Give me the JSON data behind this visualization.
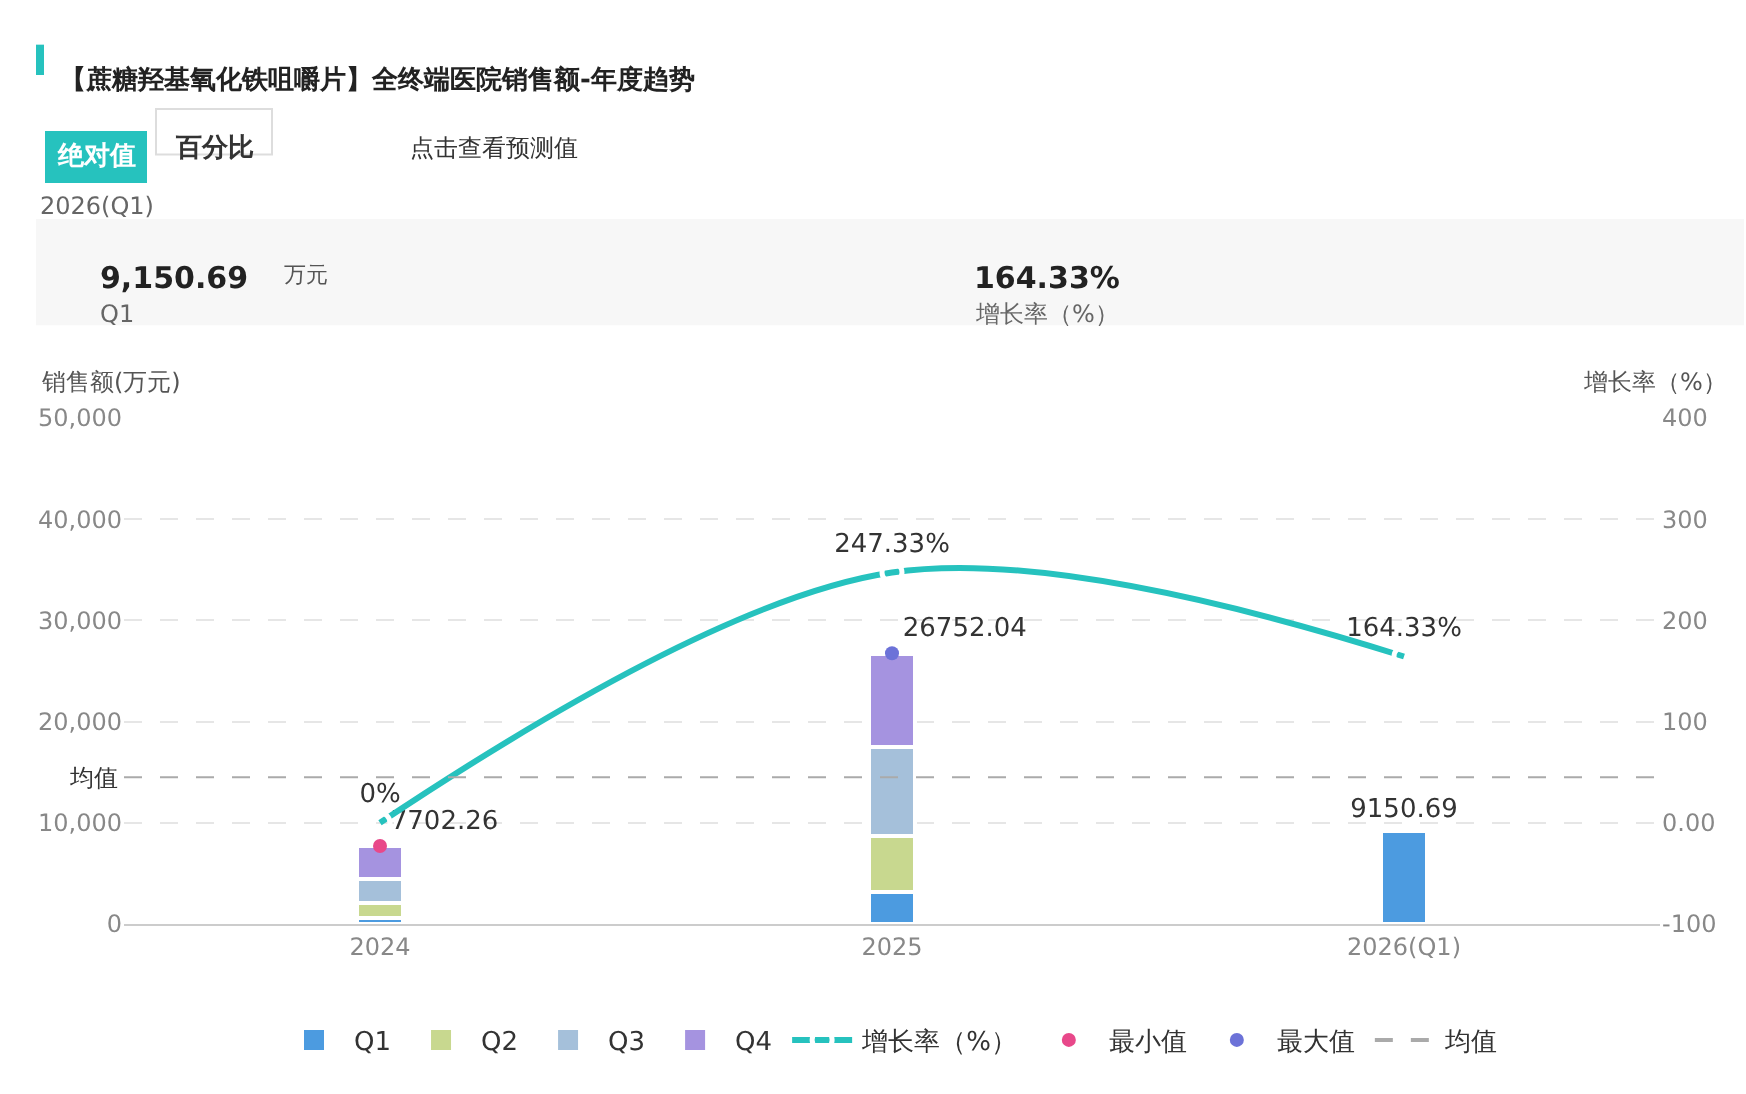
{
  "chart_data": [
    {
      "type": "other",
      "title": "【蔗糖羟基氧化铁咀嚼片】全终端医院销售额-年度趋势",
      "annotations": [
        "绝对值",
        "百分比",
        "点击查看预测值",
        "2026(Q1)",
        "9,150.69",
        "万元",
        "Q1",
        "164.33%",
        "增长率（%）"
      ]
    },
    {
      "type": "bar",
      "stacked": true,
      "categories": [
        "2024",
        "2025",
        "2026(Q1)"
      ],
      "ylabel": "销售额(万元)",
      "y2label": "增长率（%）",
      "ylim": [
        0,
        50000
      ],
      "yticks": [
        {
          "value": 0,
          "label": "0"
        },
        {
          "value": 10000,
          "label": "10,000"
        },
        {
          "value": 20000,
          "label": "20,000"
        },
        {
          "value": 30000,
          "label": "30,000"
        },
        {
          "value": 40000,
          "label": "40,000"
        },
        {
          "value": 50000,
          "label": "50,000"
        }
      ],
      "y2lim": [
        -100,
        400
      ],
      "y2ticks": [
        -100,
        {
          "value": 0,
          "label": "0.00"
        },
        100,
        200,
        300,
        400
      ],
      "series": [
        {
          "name": "Q1",
          "color": "#4c9be0",
          "values": [
            600,
            3200,
            9150.69
          ],
          "value_labels": [
            null,
            null,
            "9150.69"
          ]
        },
        {
          "name": "Q2",
          "color": "#c8d88f",
          "values": [
            1500,
            5500,
            null
          ]
        },
        {
          "name": "Q3",
          "color": "#a5c0da",
          "values": [
            2300,
            8800,
            null
          ]
        },
        {
          "name": "Q4",
          "color": "#a593e0",
          "values": [
            3300,
            9200,
            null
          ]
        },
        {
          "name": "增长率（%）",
          "type": "line",
          "axis": "y2",
          "color": "#26c2be",
          "marker": "circle",
          "values": [
            0,
            247.33,
            164.33
          ],
          "value_labels": [
            "0%",
            "247.33%",
            "164.33%"
          ]
        },
        {
          "name": "最小值",
          "type": "scatter",
          "color": "#e8488a",
          "marker": "circle",
          "values": [
            7702.26,
            null,
            null
          ],
          "value_labels": [
            "7702.26",
            null,
            null
          ]
        },
        {
          "name": "最大值",
          "type": "scatter",
          "color": "#6c72d8",
          "marker": "circle",
          "values": [
            null,
            26752.04,
            null
          ],
          "value_labels": [
            null,
            "26752.04",
            null
          ]
        }
      ],
      "ref_lines": [
        {
          "axis": "y",
          "value": 14500,
          "label": "均值",
          "color": "#aaaaaa",
          "line_style": "dashed"
        }
      ],
      "grid": "y",
      "legend": "bottom"
    }
  ]
}
